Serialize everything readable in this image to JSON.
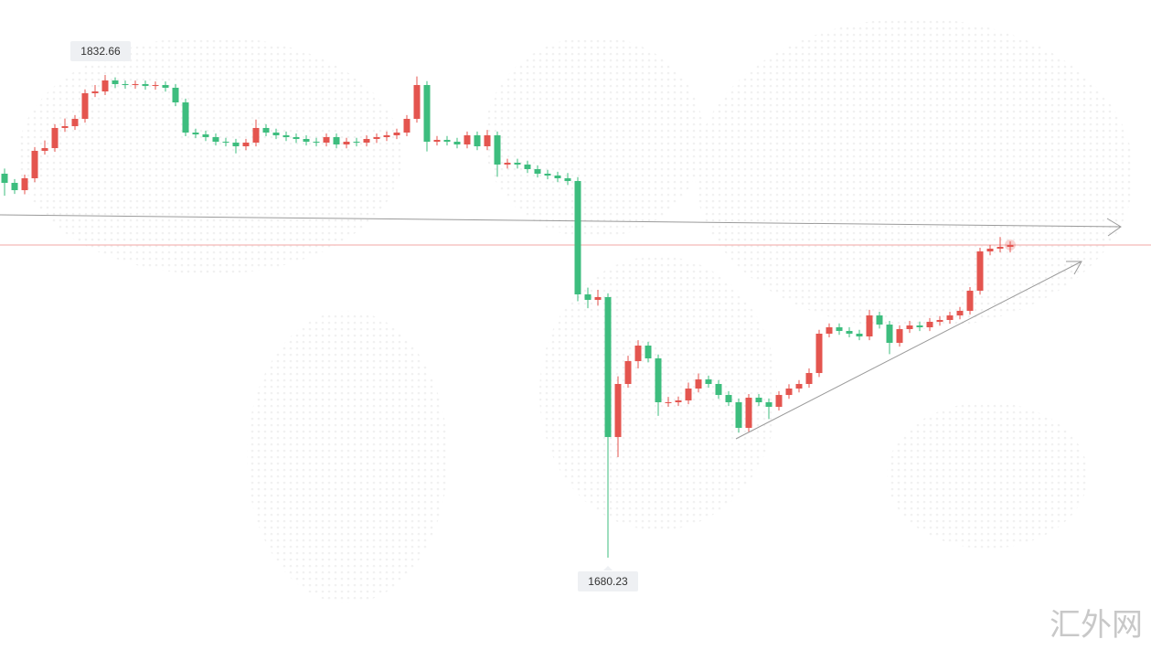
{
  "chart_data": {
    "type": "candlestick",
    "up_color": "#e4554f",
    "down_color": "#3dbd7e",
    "open": [
      1801.48,
      1798.59,
      1796.28,
      1800.04,
      1808.7,
      1809.56,
      1815.92,
      1816.49,
      1818.8,
      1826.89,
      1827.46,
      1830.93,
      1829.77,
      1829.48,
      1829.77,
      1829.2,
      1829.48,
      1828.62,
      1824.0,
      1814.47,
      1813.89,
      1813.03,
      1811.58,
      1811.3,
      1810.14,
      1811.3,
      1815.92,
      1814.47,
      1813.61,
      1813.03,
      1812.45,
      1811.58,
      1811.3,
      1813.03,
      1810.72,
      1811.58,
      1811.3,
      1812.45,
      1813.03,
      1813.61,
      1814.47,
      1818.8,
      1829.48,
      1811.58,
      1812.16,
      1811.58,
      1810.72,
      1813.61,
      1810.14,
      1813.61,
      1804.37,
      1804.94,
      1804.37,
      1802.92,
      1801.48,
      1800.9,
      1800.04,
      1799.17,
      1763.37,
      1761.64,
      1762.51,
      1718.33,
      1735.08,
      1742.3,
      1747.2,
      1743.16,
      1729.31,
      1729.31,
      1729.88,
      1733.64,
      1736.52,
      1735.08,
      1731.61,
      1729.31,
      1721.22,
      1730.75,
      1729.31,
      1727.86,
      1731.61,
      1733.64,
      1735.08,
      1738.54,
      1750.96,
      1752.98,
      1751.82,
      1750.96,
      1750.09,
      1756.73,
      1753.84,
      1748.07,
      1752.4,
      1753.56,
      1752.98,
      1754.71,
      1755.29,
      1756.73,
      1758.18,
      1764.53,
      1776.94,
      1777.81,
      1778.38
    ],
    "high": [
      1803.1,
      1799.8,
      1801.2,
      1809.9,
      1812.0,
      1817.1,
      1818.9,
      1820.0,
      1828.1,
      1829.5,
      1832.66,
      1831.9,
      1830.9,
      1830.9,
      1830.9,
      1830.6,
      1830.6,
      1829.8,
      1825.2,
      1815.7,
      1815.1,
      1814.2,
      1812.8,
      1812.5,
      1812.5,
      1818.6,
      1817.1,
      1815.7,
      1814.8,
      1814.2,
      1813.6,
      1812.8,
      1814.2,
      1814.2,
      1812.8,
      1812.8,
      1813.6,
      1814.2,
      1814.8,
      1815.7,
      1820.0,
      1832.2,
      1830.7,
      1813.4,
      1813.4,
      1812.8,
      1814.8,
      1814.8,
      1815.3,
      1814.8,
      1806.2,
      1806.2,
      1805.6,
      1804.1,
      1802.7,
      1802.1,
      1801.7,
      1800.4,
      1765.5,
      1764.8,
      1763.7,
      1737.5,
      1744.0,
      1748.9,
      1748.4,
      1744.4,
      1731.0,
      1731.1,
      1735.5,
      1738.4,
      1737.7,
      1736.3,
      1732.8,
      1730.5,
      1731.9,
      1731.9,
      1730.5,
      1732.8,
      1735.0,
      1736.3,
      1740.0,
      1752.2,
      1754.2,
      1754.2,
      1753.0,
      1752.2,
      1758.5,
      1757.9,
      1755.0,
      1753.6,
      1755.0,
      1754.8,
      1755.9,
      1756.5,
      1757.9,
      1759.4,
      1765.7,
      1778.1,
      1779.0,
      1781.5,
      1780.1
    ],
    "low": [
      1794.5,
      1795.1,
      1795.0,
      1798.8,
      1807.5,
      1808.4,
      1814.7,
      1815.3,
      1817.6,
      1825.7,
      1826.3,
      1828.5,
      1828.3,
      1828.3,
      1828.0,
      1828.0,
      1827.4,
      1822.8,
      1813.3,
      1812.7,
      1811.8,
      1810.4,
      1810.1,
      1807.9,
      1808.9,
      1810.1,
      1813.3,
      1812.4,
      1811.8,
      1811.2,
      1810.4,
      1810.1,
      1810.1,
      1809.5,
      1809.5,
      1810.1,
      1810.1,
      1811.2,
      1811.8,
      1812.4,
      1813.3,
      1817.6,
      1808.5,
      1810.4,
      1810.4,
      1809.5,
      1809.5,
      1808.9,
      1808.9,
      1800.5,
      1803.1,
      1803.1,
      1801.7,
      1800.3,
      1799.7,
      1798.8,
      1797.9,
      1761.2,
      1759.0,
      1759.8,
      1680.23,
      1712.0,
      1733.9,
      1740.0,
      1741.9,
      1725.0,
      1727.9,
      1728.1,
      1728.7,
      1732.4,
      1733.9,
      1730.4,
      1728.1,
      1719.7,
      1720.0,
      1728.1,
      1724.0,
      1726.7,
      1730.4,
      1732.4,
      1733.9,
      1737.3,
      1749.8,
      1750.6,
      1749.8,
      1748.9,
      1748.9,
      1752.6,
      1744.5,
      1746.9,
      1751.2,
      1751.8,
      1751.8,
      1753.5,
      1754.1,
      1755.5,
      1757.0,
      1763.3,
      1775.7,
      1776.6,
      1776.6
    ],
    "close": [
      1798.59,
      1796.28,
      1800.04,
      1808.7,
      1809.56,
      1815.92,
      1816.49,
      1818.8,
      1826.89,
      1827.46,
      1830.93,
      1829.77,
      1829.48,
      1829.77,
      1829.2,
      1829.48,
      1828.62,
      1824.0,
      1814.47,
      1813.89,
      1813.03,
      1811.58,
      1811.3,
      1810.14,
      1811.3,
      1815.92,
      1814.47,
      1813.61,
      1813.03,
      1812.45,
      1811.58,
      1811.3,
      1813.03,
      1810.72,
      1811.58,
      1811.3,
      1812.45,
      1813.03,
      1813.61,
      1814.47,
      1818.8,
      1829.48,
      1811.58,
      1812.16,
      1811.58,
      1810.72,
      1813.61,
      1810.14,
      1813.61,
      1804.37,
      1804.94,
      1804.37,
      1802.92,
      1801.48,
      1800.9,
      1800.04,
      1799.17,
      1763.37,
      1761.64,
      1762.51,
      1718.33,
      1735.08,
      1742.3,
      1747.2,
      1743.16,
      1729.31,
      1729.31,
      1729.88,
      1733.64,
      1736.52,
      1735.08,
      1731.61,
      1729.31,
      1721.22,
      1730.75,
      1729.31,
      1727.86,
      1731.61,
      1733.64,
      1735.08,
      1738.54,
      1750.96,
      1752.98,
      1751.82,
      1750.96,
      1750.09,
      1756.73,
      1753.84,
      1748.07,
      1752.4,
      1753.56,
      1752.98,
      1754.71,
      1755.29,
      1756.73,
      1758.18,
      1764.53,
      1776.94,
      1777.81,
      1778.38,
      1778.96
    ]
  },
  "watermark": "汇外网"
}
